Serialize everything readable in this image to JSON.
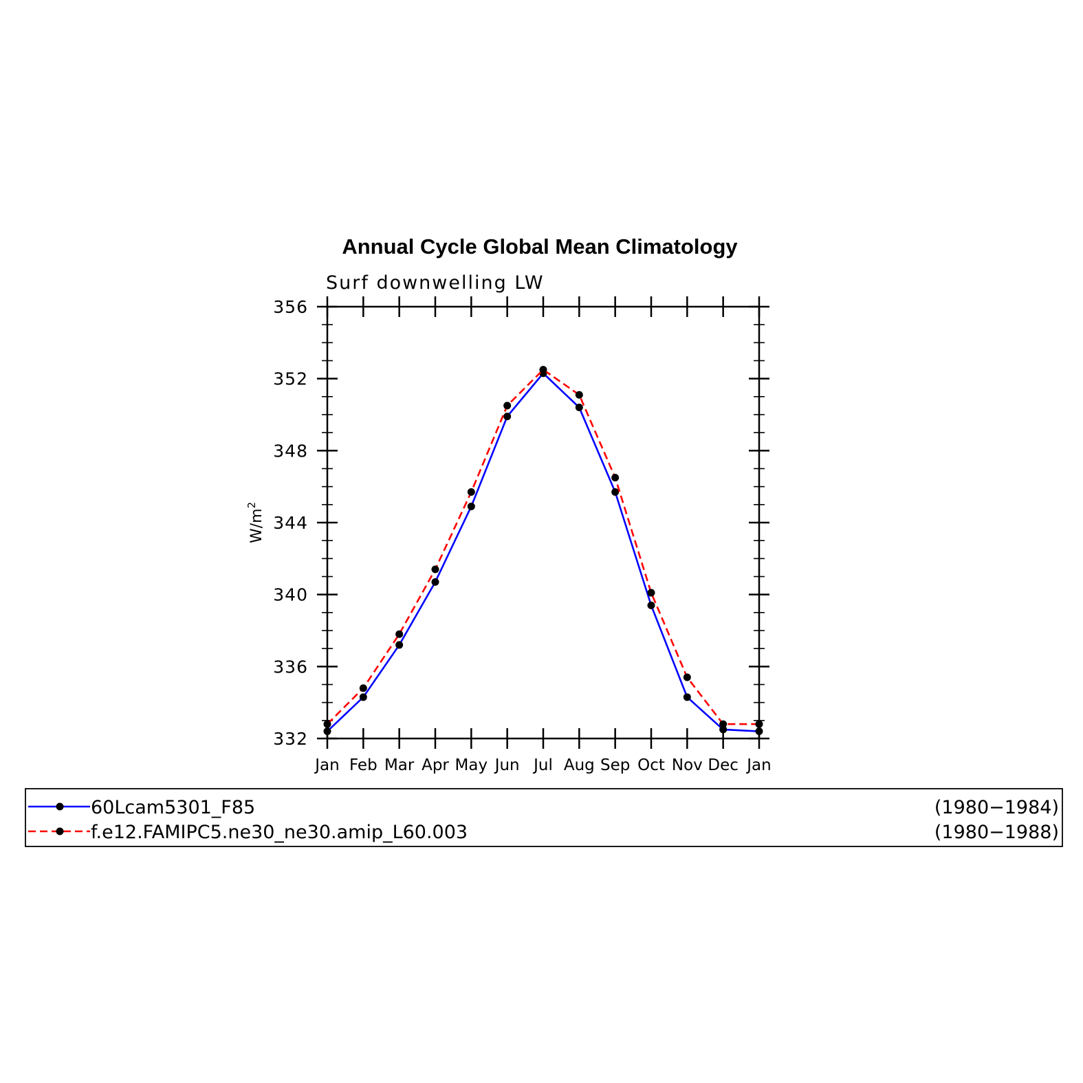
{
  "chart_data": {
    "type": "line",
    "title": "Annual Cycle Global Mean Climatology",
    "subtitle": "Surf downwelling LW",
    "ylabel": "W/m",
    "ylabel_sup": "2",
    "categories": [
      "Jan",
      "Feb",
      "Mar",
      "Apr",
      "May",
      "Jun",
      "Jul",
      "Aug",
      "Sep",
      "Oct",
      "Nov",
      "Dec",
      "Jan"
    ],
    "ylim": [
      332,
      356
    ],
    "yticks": [
      332,
      336,
      340,
      344,
      348,
      352,
      356
    ],
    "series": [
      {
        "name": "60Lcam5301_F85",
        "period": "(1980−1984)",
        "color": "#0000ff",
        "dash": "solid",
        "values": [
          332.4,
          334.3,
          337.2,
          340.7,
          344.9,
          349.9,
          352.3,
          350.4,
          345.7,
          339.4,
          334.3,
          332.5,
          332.4
        ]
      },
      {
        "name": "f.e12.FAMIPC5.ne30_ne30.amip_L60.003",
        "period": "(1980−1988)",
        "color": "#ff0000",
        "dash": "dashed",
        "values": [
          332.8,
          334.8,
          337.8,
          341.4,
          345.7,
          350.5,
          352.5,
          351.1,
          346.5,
          340.1,
          335.4,
          332.8,
          332.8
        ]
      }
    ],
    "grid": false,
    "legend_position": "bottom"
  }
}
